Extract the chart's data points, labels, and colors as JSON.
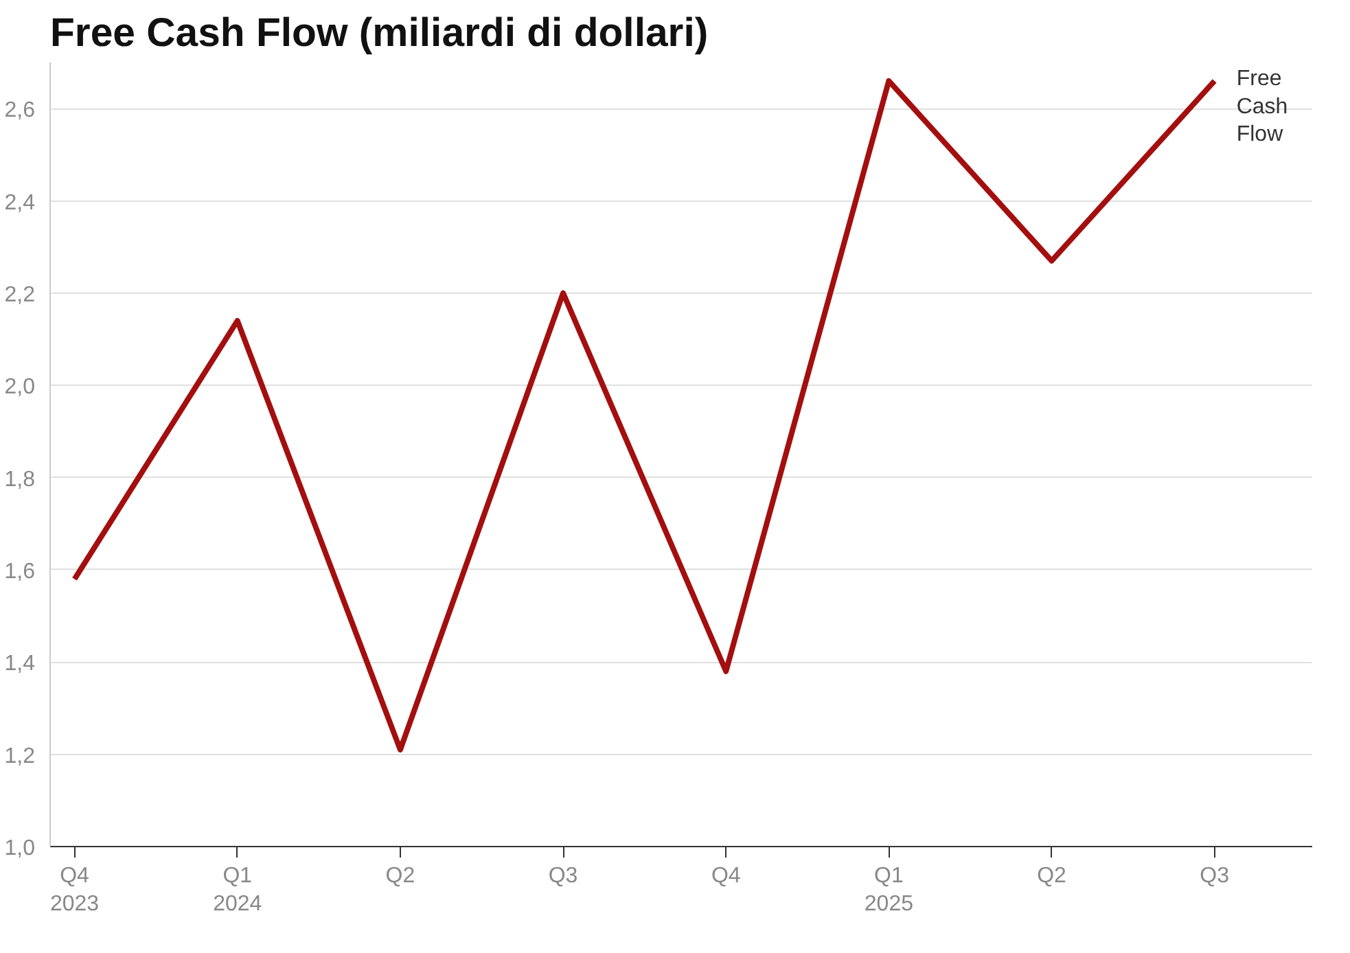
{
  "chart_data": {
    "type": "line",
    "title": "Free Cash Flow (miliardi di dollari)",
    "categories": [
      "Q4\n2023",
      "Q1\n2024",
      "Q2",
      "Q3",
      "Q4",
      "Q1\n2025",
      "Q2",
      "Q3"
    ],
    "series": [
      {
        "name": "Free Cash Flow",
        "color": "#a30f0f",
        "values": [
          1.58,
          2.14,
          1.21,
          2.2,
          1.38,
          2.66,
          2.27,
          2.66
        ]
      }
    ],
    "ylim": [
      1.0,
      2.7
    ],
    "yticks": [
      {
        "value": 1.0,
        "label": "1,0"
      },
      {
        "value": 1.2,
        "label": "1,2"
      },
      {
        "value": 1.4,
        "label": "1,4"
      },
      {
        "value": 1.6,
        "label": "1,6"
      },
      {
        "value": 1.8,
        "label": "1,8"
      },
      {
        "value": 2.0,
        "label": "2,0"
      },
      {
        "value": 2.2,
        "label": "2,2"
      },
      {
        "value": 2.4,
        "label": "2,4"
      },
      {
        "value": 2.6,
        "label": "2,6"
      }
    ],
    "grid": "y",
    "marker": "none",
    "line_style": "solid"
  }
}
